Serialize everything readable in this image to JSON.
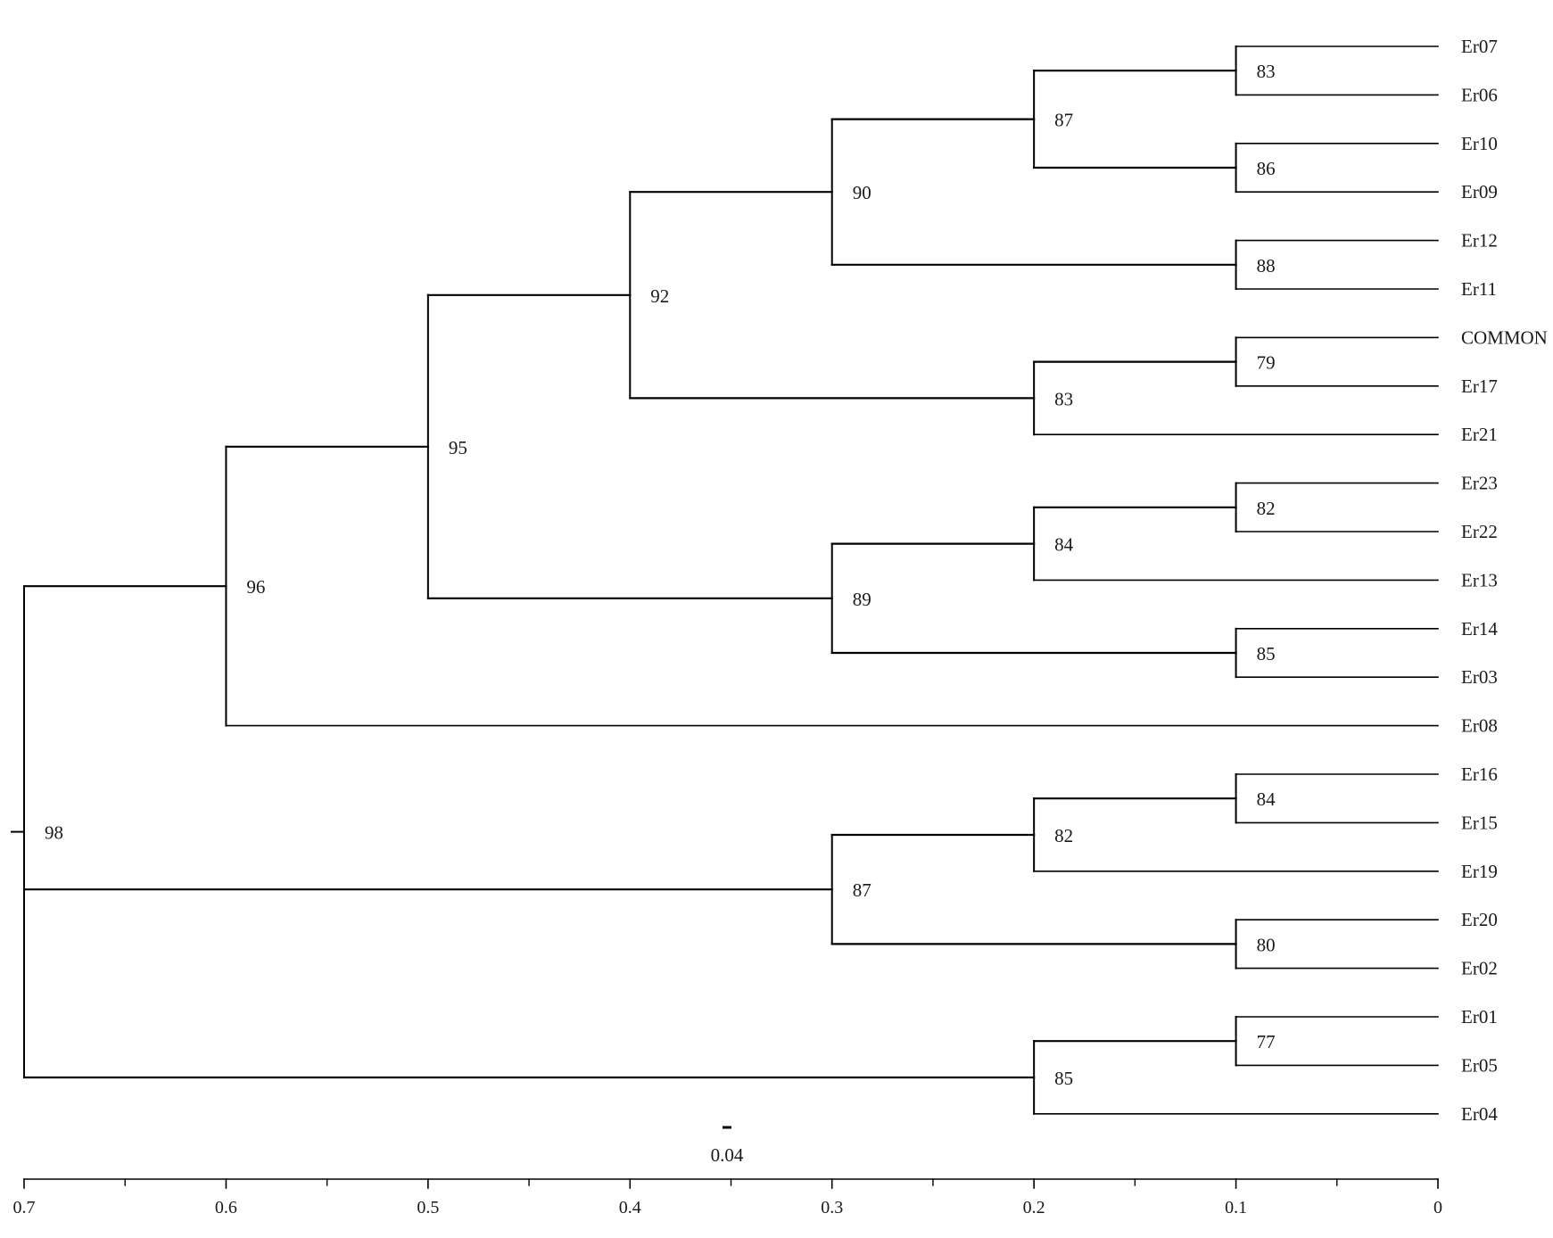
{
  "tree": {
    "leaves": [
      "Er07",
      "Er06",
      "Er10",
      "Er09",
      "Er12",
      "Er11",
      "COMMON",
      "Er17",
      "Er21",
      "Er23",
      "Er22",
      "Er13",
      "Er14",
      "Er03",
      "Er08",
      "Er16",
      "Er15",
      "Er19",
      "Er20",
      "Er02",
      "Er01",
      "Er05",
      "Er04"
    ],
    "nodes": [
      {
        "id": "n1",
        "height": 0.1,
        "support": "83",
        "children": [
          "Er07",
          "Er06"
        ]
      },
      {
        "id": "n2",
        "height": 0.1,
        "support": "86",
        "children": [
          "Er10",
          "Er09"
        ]
      },
      {
        "id": "n3",
        "height": 0.2,
        "support": "87",
        "children": [
          "n1",
          "n2"
        ]
      },
      {
        "id": "n4",
        "height": 0.1,
        "support": "88",
        "children": [
          "Er12",
          "Er11"
        ]
      },
      {
        "id": "n5",
        "height": 0.3,
        "support": "90",
        "children": [
          "n3",
          "n4"
        ]
      },
      {
        "id": "n6",
        "height": 0.1,
        "support": "79",
        "children": [
          "COMMON",
          "Er17"
        ]
      },
      {
        "id": "n7",
        "height": 0.2,
        "support": "83",
        "children": [
          "n6",
          "Er21"
        ]
      },
      {
        "id": "n8",
        "height": 0.4,
        "support": "92",
        "children": [
          "n5",
          "n7"
        ]
      },
      {
        "id": "n9",
        "height": 0.1,
        "support": "82",
        "children": [
          "Er23",
          "Er22"
        ]
      },
      {
        "id": "n10",
        "height": 0.2,
        "support": "84",
        "children": [
          "n9",
          "Er13"
        ]
      },
      {
        "id": "n11",
        "height": 0.1,
        "support": "85",
        "children": [
          "Er14",
          "Er03"
        ]
      },
      {
        "id": "n12",
        "height": 0.3,
        "support": "89",
        "children": [
          "n10",
          "n11"
        ]
      },
      {
        "id": "n13",
        "height": 0.5,
        "support": "95",
        "children": [
          "n8",
          "n12"
        ]
      },
      {
        "id": "n14",
        "height": 0.6,
        "support": "96",
        "children": [
          "n13",
          "Er08"
        ]
      },
      {
        "id": "n15",
        "height": 0.1,
        "support": "84",
        "children": [
          "Er16",
          "Er15"
        ]
      },
      {
        "id": "n16",
        "height": 0.2,
        "support": "82",
        "children": [
          "n15",
          "Er19"
        ]
      },
      {
        "id": "n17",
        "height": 0.1,
        "support": "80",
        "children": [
          "Er20",
          "Er02"
        ]
      },
      {
        "id": "n18",
        "height": 0.3,
        "support": "87",
        "children": [
          "n16",
          "n17"
        ]
      },
      {
        "id": "n19",
        "height": 0.1,
        "support": "77",
        "children": [
          "Er01",
          "Er05"
        ]
      },
      {
        "id": "n20",
        "height": 0.2,
        "support": "85",
        "children": [
          "n19",
          "Er04"
        ]
      },
      {
        "id": "n21",
        "height": 0.7,
        "support": "98",
        "children": [
          "n14",
          "n18",
          "n20"
        ]
      }
    ],
    "root": "n21"
  },
  "axis": {
    "ticks": [
      "0.7",
      "0.6",
      "0.5",
      "0.4",
      "0.3",
      "0.2",
      "0.1",
      "0"
    ],
    "tick_values": [
      0.7,
      0.6,
      0.5,
      0.4,
      0.3,
      0.2,
      0.1,
      0
    ],
    "min": 0,
    "max": 0.7,
    "minor_ticks": true
  },
  "scale_bar": {
    "label": "0.04"
  },
  "colors": {
    "branch": "#000000",
    "text": "#1a1a1a",
    "background": "#ffffff"
  }
}
